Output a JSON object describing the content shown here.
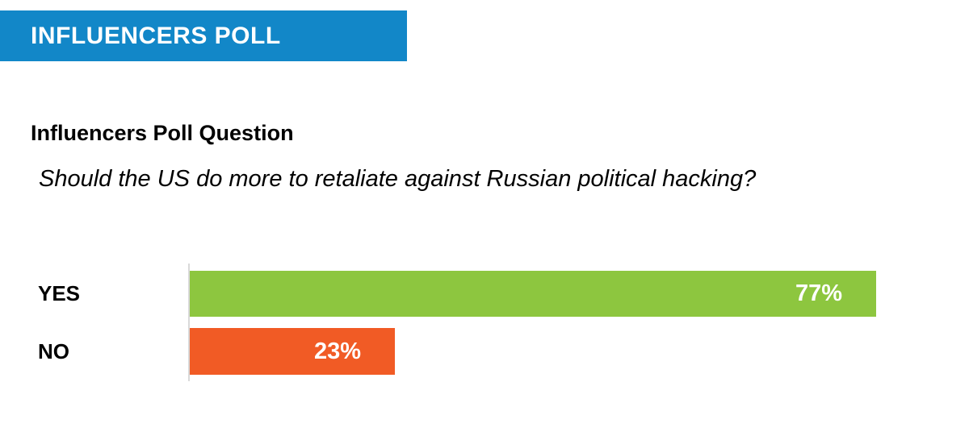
{
  "banner": {
    "label": "INFLUENCERS POLL",
    "bg_color": "#1287C8",
    "text_color": "#FFFFFF"
  },
  "section": {
    "heading": "Influencers Poll Question",
    "question": "Should the US do more to retaliate against Russian political hacking?"
  },
  "chart_data": {
    "type": "bar",
    "orientation": "horizontal",
    "title": "Influencers Poll Question",
    "categories": [
      "YES",
      "NO"
    ],
    "values": [
      77,
      23
    ],
    "value_labels": [
      "77%",
      "23%"
    ],
    "bar_colors": [
      "#8DC63F",
      "#F15B25"
    ],
    "value_label_color": "#FFFFFF",
    "category_label_color": "#000000",
    "axis_color": "#D9D9D9",
    "xlim": [
      0,
      100
    ],
    "grid": false,
    "legend": false
  }
}
